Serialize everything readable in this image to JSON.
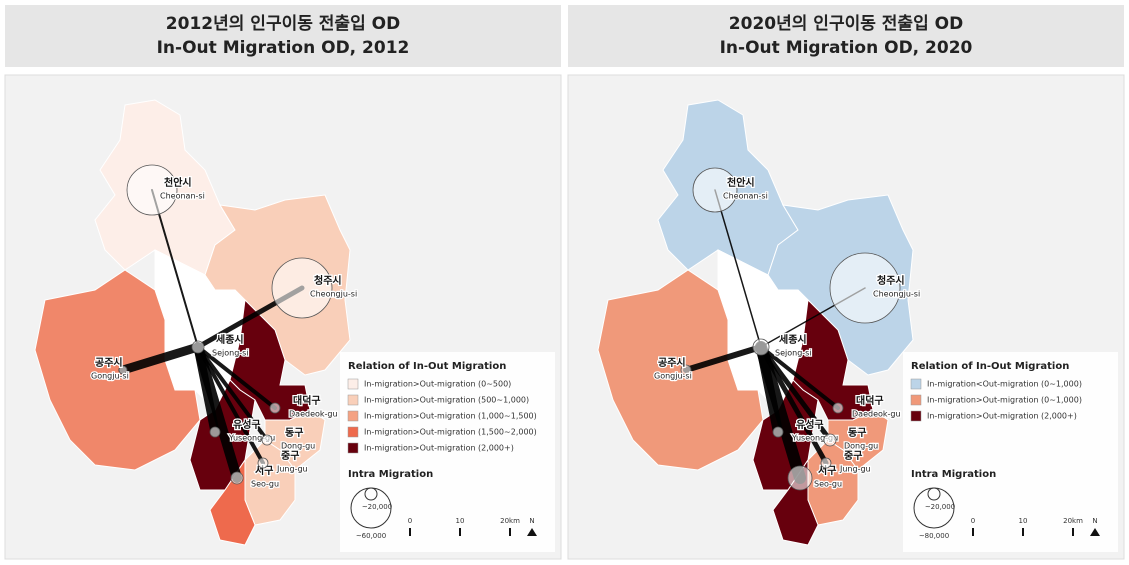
{
  "panels": [
    {
      "title_ko": "2012년의 인구이동 전출입 OD",
      "title_en": "In-Out Migration OD, 2012",
      "cities": [
        {
          "ko": "천안시",
          "en": "Cheonan-si"
        },
        {
          "ko": "청주시",
          "en": "Cheongju-si"
        },
        {
          "ko": "세종시",
          "en": "Sejong-si"
        },
        {
          "ko": "공주시",
          "en": "Gongju-si"
        },
        {
          "ko": "대덕구",
          "en": "Daedeok-gu"
        },
        {
          "ko": "유성구",
          "en": "Yuseong-gu"
        },
        {
          "ko": "동구",
          "en": "Dong-gu"
        },
        {
          "ko": "서구",
          "en": "Seo-gu"
        },
        {
          "ko": "중구",
          "en": "Jung-gu"
        }
      ],
      "legend": {
        "title": "Relation of In-Out Migration",
        "items": [
          {
            "label": "In-migration>Out-migration",
            "range": "(0~500)",
            "color": "#fdeee8"
          },
          {
            "label": "In-migration>Out-migration",
            "range": "(500~1,000)",
            "color": "#f9cfb9"
          },
          {
            "label": "In-migration>Out-migration",
            "range": "(1,000~1,500)",
            "color": "#f4a283"
          },
          {
            "label": "In-migration>Out-migration",
            "range": "(1,500~2,000)",
            "color": "#ee6a4d"
          },
          {
            "label": "In-migration>Out-migration",
            "range": "(2,000+)",
            "color": "#67000d"
          }
        ]
      },
      "intra": {
        "title": "Intra Migration",
        "small": "~20,000",
        "large": "~60,000"
      },
      "scale": [
        "0",
        "10",
        "20km"
      ],
      "north": "N"
    },
    {
      "title_ko": "2020년의 인구이동 전출입 OD",
      "title_en": "In-Out Migration OD, 2020",
      "cities": [
        {
          "ko": "천안시",
          "en": "Cheonan-si"
        },
        {
          "ko": "청주시",
          "en": "Cheongju-si"
        },
        {
          "ko": "세종시",
          "en": "Sejong-si"
        },
        {
          "ko": "공주시",
          "en": "Gongju-si"
        },
        {
          "ko": "대덕구",
          "en": "Daedeok-gu"
        },
        {
          "ko": "유성구",
          "en": "Yuseong-gu"
        },
        {
          "ko": "동구",
          "en": "Dong-gu"
        },
        {
          "ko": "서구",
          "en": "Seo-gu"
        },
        {
          "ko": "중구",
          "en": "Jung-gu"
        }
      ],
      "legend": {
        "title": "Relation of In-Out Migration",
        "items": [
          {
            "label": "In-migration<Out-migration",
            "range": "(0~1,000)",
            "color": "#bcd4e8"
          },
          {
            "label": "In-migration>Out-migration",
            "range": "(0~1,000)",
            "color": "#f0997a"
          },
          {
            "label": "In-migration>Out-migration",
            "range": "(2,000+)",
            "color": "#67000d"
          }
        ]
      },
      "intra": {
        "title": "Intra Migration",
        "small": "~20,000",
        "large": "~80,000"
      },
      "scale": [
        "0",
        "10",
        "20km"
      ],
      "north": "N"
    }
  ]
}
